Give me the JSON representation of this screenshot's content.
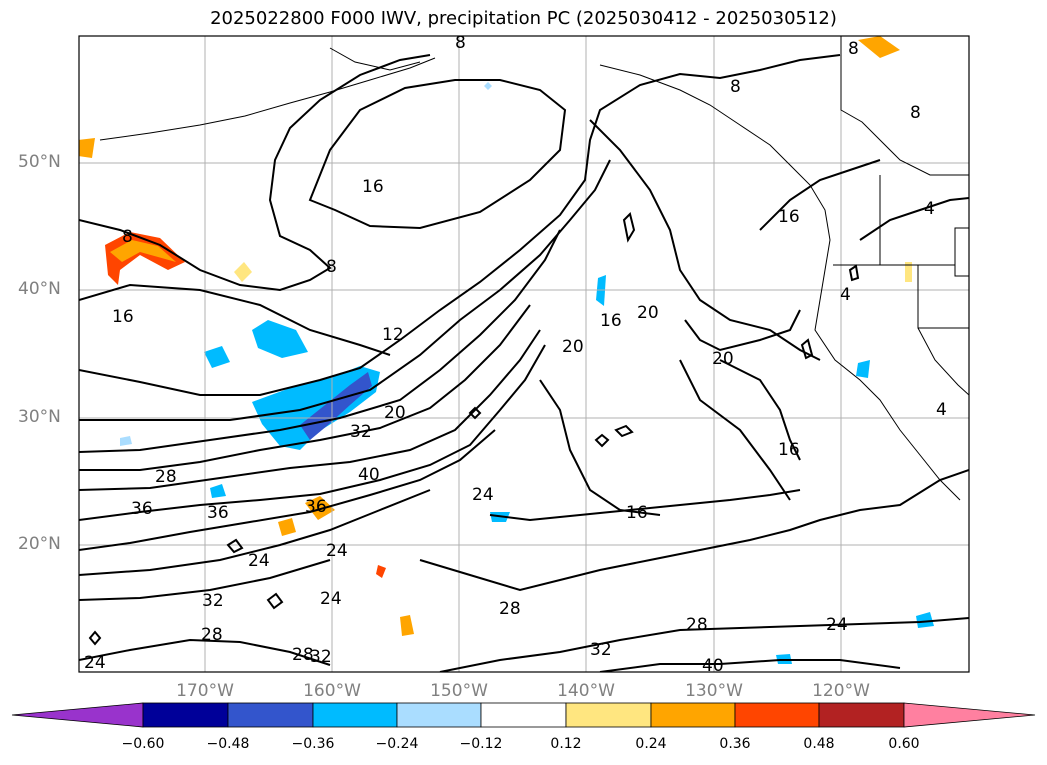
{
  "title": "2025022800 F000 IWV, precipitation PC (2025030412 - 2025030512)",
  "map": {
    "lat_labels": [
      "50°N",
      "40°N",
      "30°N",
      "20°N"
    ],
    "lon_labels": [
      "170°W",
      "160°W",
      "150°W",
      "140°W",
      "130°W",
      "120°W"
    ],
    "contour_labels": [
      "8",
      "8",
      "8",
      "8",
      "8",
      "8",
      "4",
      "4",
      "4",
      "16",
      "16",
      "16",
      "16",
      "16",
      "16",
      "12",
      "20",
      "20",
      "20",
      "20",
      "24",
      "24",
      "24",
      "24",
      "24",
      "24",
      "28",
      "28",
      "28",
      "28",
      "28",
      "32",
      "32",
      "32",
      "32",
      "36",
      "36",
      "36",
      "40",
      "40"
    ],
    "contour_color": "#000000",
    "grid_color": "#b0b0b0"
  },
  "colorbar": {
    "colors": [
      "#9933cc",
      "#000099",
      "#3355cc",
      "#00bbff",
      "#aaddff",
      "#ffffff",
      "#ffe680",
      "#ffa500",
      "#ff4500",
      "#b22222",
      "#ff80a0"
    ],
    "tick_labels": [
      "−0.60",
      "−0.48",
      "−0.36",
      "−0.24",
      "−0.12",
      "0.12",
      "0.24",
      "0.36",
      "0.48",
      "0.60"
    ]
  }
}
